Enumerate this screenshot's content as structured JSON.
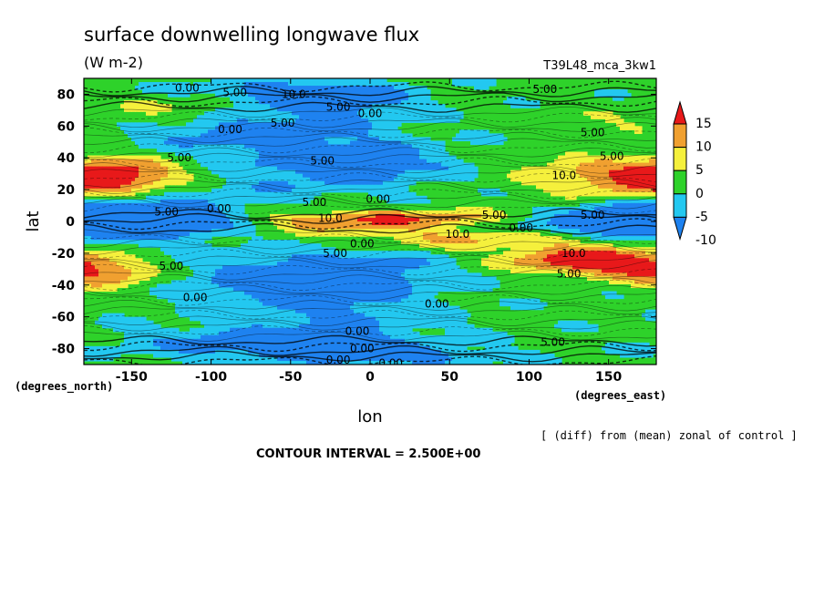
{
  "header": {
    "title": "surface downwelling longwave flux",
    "units": "(W m-2)",
    "run": "T39L48_mca_3kw1"
  },
  "footer": {
    "contour_interval": "CONTOUR INTERVAL = 2.500E+00",
    "note": "[ (diff) from (mean) zonal of control ]"
  },
  "chart_data": {
    "type": "heatmap",
    "title": "surface downwelling longwave flux",
    "subtitle": "(W m-2)",
    "xlabel": "lon",
    "ylabel": "lat",
    "x_units": "(degrees_east)",
    "y_units": "(degrees_north)",
    "xlim": [
      -180,
      180
    ],
    "ylim": [
      -90,
      90
    ],
    "x_ticks": [
      -150,
      -100,
      -50,
      0,
      50,
      100,
      150
    ],
    "x_tick_labels": [
      "-150",
      "-100",
      "-50",
      "0",
      "50",
      "100",
      "150"
    ],
    "y_ticks": [
      80,
      60,
      40,
      20,
      0,
      -20,
      -40,
      -60,
      -80
    ],
    "y_tick_labels": [
      "80",
      "60",
      "40",
      "20",
      "0",
      "-20",
      "-40",
      "-60",
      "-80"
    ],
    "colorbar": {
      "levels": [
        15,
        10,
        5,
        0,
        -5,
        -10
      ],
      "labels": [
        "15",
        "10",
        "5",
        "0",
        "-5",
        "-10"
      ],
      "colors": [
        "#e8191a",
        "#f0a030",
        "#f5f03c",
        "#2ed22a",
        "#23c8f0",
        "#1e82f0"
      ]
    },
    "contour_labels": [
      {
        "text": "0.00",
        "lon": -115,
        "lat": 84
      },
      {
        "text": "5.00",
        "lon": -85,
        "lat": 81
      },
      {
        "text": "10.0",
        "lon": -48,
        "lat": 80
      },
      {
        "text": "5.00",
        "lon": -20,
        "lat": 72
      },
      {
        "text": "0.00",
        "lon": 0,
        "lat": 68
      },
      {
        "text": "5.00",
        "lon": -55,
        "lat": 62
      },
      {
        "text": "0.00",
        "lon": -88,
        "lat": 58
      },
      {
        "text": "5.00",
        "lon": 110,
        "lat": 83
      },
      {
        "text": "5.00",
        "lon": 140,
        "lat": 56
      },
      {
        "text": "5.00",
        "lon": 152,
        "lat": 41
      },
      {
        "text": "5.00",
        "lon": -120,
        "lat": 40
      },
      {
        "text": "5.00",
        "lon": -30,
        "lat": 38
      },
      {
        "text": "10.0",
        "lon": 122,
        "lat": 29
      },
      {
        "text": "5.00",
        "lon": -35,
        "lat": 12
      },
      {
        "text": "0.00",
        "lon": 5,
        "lat": 14
      },
      {
        "text": "5.00",
        "lon": -128,
        "lat": 6
      },
      {
        "text": "0.00",
        "lon": -95,
        "lat": 8
      },
      {
        "text": "10.0",
        "lon": -25,
        "lat": 2
      },
      {
        "text": "5.00",
        "lon": 78,
        "lat": 4
      },
      {
        "text": "0.00",
        "lon": 95,
        "lat": -4
      },
      {
        "text": "5.00",
        "lon": 140,
        "lat": 4
      },
      {
        "text": "10.0",
        "lon": 55,
        "lat": -8
      },
      {
        "text": "0.00",
        "lon": -5,
        "lat": -14
      },
      {
        "text": "5.00",
        "lon": -22,
        "lat": -20
      },
      {
        "text": "10.0",
        "lon": 128,
        "lat": -20
      },
      {
        "text": "5.00",
        "lon": 125,
        "lat": -33
      },
      {
        "text": "5.00",
        "lon": -125,
        "lat": -28
      },
      {
        "text": "0.00",
        "lon": -110,
        "lat": -48
      },
      {
        "text": "0.00",
        "lon": 42,
        "lat": -52
      },
      {
        "text": "0.00",
        "lon": -8,
        "lat": -69
      },
      {
        "text": "5.00",
        "lon": 115,
        "lat": -76
      },
      {
        "text": "0.00",
        "lon": -5,
        "lat": -80
      },
      {
        "text": "0.00",
        "lon": -20,
        "lat": -87
      },
      {
        "text": "0.00",
        "lon": 13,
        "lat": -89
      }
    ]
  }
}
